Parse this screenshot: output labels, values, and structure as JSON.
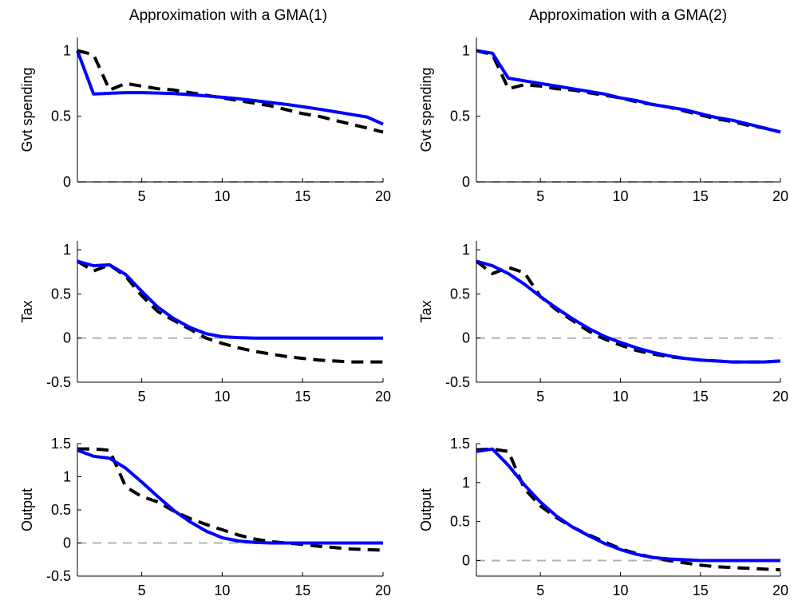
{
  "colors": {
    "model": "#0000ff",
    "target": "#000000",
    "zero_line": "#b3b3b3",
    "axes": "#000000"
  },
  "columns": [
    {
      "title": "Approximation with a GMA(1)"
    },
    {
      "title": "Approximation with a GMA(2)"
    }
  ],
  "chart_data": [
    {
      "type": "line",
      "title": "Approximation with a GMA(1)",
      "xlabel": "",
      "ylabel": "Gvt spending",
      "xlim": [
        1,
        20
      ],
      "ylim": [
        0,
        1.1
      ],
      "xticks": [
        5,
        10,
        15,
        20
      ],
      "xtick_labels": [
        "5",
        "10",
        "15",
        "20"
      ],
      "yticks": [
        0,
        0.5,
        1
      ],
      "ytick_labels": [
        "0",
        "0.5",
        "1"
      ],
      "zero_line": true,
      "x": [
        1,
        2,
        3,
        4,
        5,
        6,
        7,
        8,
        9,
        10,
        11,
        12,
        13,
        14,
        15,
        16,
        17,
        18,
        19,
        20
      ],
      "series": [
        {
          "style": "dashed",
          "color": "#000000",
          "values": [
            1.0,
            0.97,
            0.7,
            0.75,
            0.73,
            0.71,
            0.7,
            0.68,
            0.66,
            0.64,
            0.62,
            0.6,
            0.58,
            0.55,
            0.52,
            0.5,
            0.47,
            0.44,
            0.41,
            0.38
          ]
        },
        {
          "style": "solid",
          "color": "#0000ff",
          "values": [
            1.0,
            0.67,
            0.675,
            0.68,
            0.68,
            0.677,
            0.673,
            0.665,
            0.655,
            0.645,
            0.633,
            0.62,
            0.605,
            0.59,
            0.573,
            0.555,
            0.535,
            0.515,
            0.495,
            0.44
          ]
        }
      ]
    },
    {
      "type": "line",
      "title": "Approximation with a GMA(2)",
      "xlabel": "",
      "ylabel": "Gvt spending",
      "xlim": [
        1,
        20
      ],
      "ylim": [
        0,
        1.1
      ],
      "xticks": [
        5,
        10,
        15,
        20
      ],
      "xtick_labels": [
        "5",
        "10",
        "15",
        "20"
      ],
      "yticks": [
        0,
        0.5,
        1
      ],
      "ytick_labels": [
        "0",
        "0.5",
        "1"
      ],
      "zero_line": true,
      "x": [
        1,
        2,
        3,
        4,
        5,
        6,
        7,
        8,
        9,
        10,
        11,
        12,
        13,
        14,
        15,
        16,
        17,
        18,
        19,
        20
      ],
      "series": [
        {
          "style": "dashed",
          "color": "#000000",
          "values": [
            1.0,
            0.97,
            0.71,
            0.74,
            0.73,
            0.71,
            0.7,
            0.68,
            0.66,
            0.64,
            0.61,
            0.59,
            0.57,
            0.54,
            0.51,
            0.48,
            0.46,
            0.43,
            0.41,
            0.38
          ]
        },
        {
          "style": "solid",
          "color": "#0000ff",
          "values": [
            1.0,
            0.98,
            0.79,
            0.77,
            0.75,
            0.73,
            0.71,
            0.69,
            0.67,
            0.64,
            0.62,
            0.59,
            0.57,
            0.55,
            0.52,
            0.49,
            0.47,
            0.44,
            0.41,
            0.38
          ]
        }
      ]
    },
    {
      "type": "line",
      "title": "",
      "xlabel": "",
      "ylabel": "Tax",
      "xlim": [
        1,
        20
      ],
      "ylim": [
        -0.5,
        1.1
      ],
      "xticks": [
        5,
        10,
        15,
        20
      ],
      "xtick_labels": [
        "5",
        "10",
        "15",
        "20"
      ],
      "yticks": [
        -0.5,
        0,
        0.5,
        1
      ],
      "ytick_labels": [
        "-0.5",
        "0",
        "0.5",
        "1"
      ],
      "zero_line": true,
      "x": [
        1,
        2,
        3,
        4,
        5,
        6,
        7,
        8,
        9,
        10,
        11,
        12,
        13,
        14,
        15,
        16,
        17,
        18,
        19,
        20
      ],
      "series": [
        {
          "style": "dashed",
          "color": "#000000",
          "values": [
            0.87,
            0.76,
            0.83,
            0.7,
            0.48,
            0.3,
            0.2,
            0.1,
            0.0,
            -0.06,
            -0.11,
            -0.15,
            -0.18,
            -0.21,
            -0.23,
            -0.25,
            -0.26,
            -0.27,
            -0.27,
            -0.27
          ]
        },
        {
          "style": "solid",
          "color": "#0000ff",
          "values": [
            0.87,
            0.82,
            0.83,
            0.72,
            0.53,
            0.35,
            0.22,
            0.12,
            0.05,
            0.015,
            0.005,
            0.0,
            0.0,
            0.0,
            0.0,
            0.0,
            0.0,
            0.0,
            0.0,
            0.0
          ]
        }
      ]
    },
    {
      "type": "line",
      "title": "",
      "xlabel": "",
      "ylabel": "Tax",
      "xlim": [
        1,
        20
      ],
      "ylim": [
        -0.5,
        1.1
      ],
      "xticks": [
        5,
        10,
        15,
        20
      ],
      "xtick_labels": [
        "5",
        "10",
        "15",
        "20"
      ],
      "yticks": [
        -0.5,
        0,
        0.5,
        1
      ],
      "ytick_labels": [
        "-0.5",
        "0",
        "0.5",
        "1"
      ],
      "zero_line": true,
      "x": [
        1,
        2,
        3,
        4,
        5,
        6,
        7,
        8,
        9,
        10,
        11,
        12,
        13,
        14,
        15,
        16,
        17,
        18,
        19,
        20
      ],
      "series": [
        {
          "style": "dashed",
          "color": "#000000",
          "values": [
            0.87,
            0.73,
            0.8,
            0.74,
            0.47,
            0.32,
            0.2,
            0.08,
            -0.01,
            -0.08,
            -0.14,
            -0.18,
            -0.21,
            -0.23,
            -0.25,
            -0.26,
            -0.27,
            -0.27,
            -0.27,
            -0.26
          ]
        },
        {
          "style": "solid",
          "color": "#0000ff",
          "values": [
            0.87,
            0.82,
            0.73,
            0.61,
            0.47,
            0.34,
            0.22,
            0.11,
            0.02,
            -0.05,
            -0.11,
            -0.16,
            -0.2,
            -0.23,
            -0.25,
            -0.26,
            -0.27,
            -0.27,
            -0.27,
            -0.26
          ]
        }
      ]
    },
    {
      "type": "line",
      "title": "",
      "xlabel": "",
      "ylabel": "Output",
      "xlim": [
        1,
        20
      ],
      "ylim": [
        -0.5,
        1.5
      ],
      "xticks": [
        5,
        10,
        15,
        20
      ],
      "xtick_labels": [
        "5",
        "10",
        "15",
        "20"
      ],
      "yticks": [
        -0.5,
        0,
        0.5,
        1,
        1.5
      ],
      "ytick_labels": [
        "-0.5",
        "0",
        "0.5",
        "1",
        "1.5"
      ],
      "zero_line": true,
      "x": [
        1,
        2,
        3,
        4,
        5,
        6,
        7,
        8,
        9,
        10,
        11,
        12,
        13,
        14,
        15,
        16,
        17,
        18,
        19,
        20
      ],
      "series": [
        {
          "style": "dashed",
          "color": "#000000",
          "values": [
            1.42,
            1.42,
            1.4,
            0.85,
            0.7,
            0.62,
            0.48,
            0.37,
            0.28,
            0.2,
            0.12,
            0.06,
            0.02,
            0.0,
            -0.02,
            -0.05,
            -0.07,
            -0.09,
            -0.1,
            -0.11
          ]
        },
        {
          "style": "solid",
          "color": "#0000ff",
          "values": [
            1.4,
            1.31,
            1.28,
            1.13,
            0.92,
            0.7,
            0.49,
            0.32,
            0.18,
            0.08,
            0.03,
            0.01,
            0.0,
            0.0,
            0.0,
            0.0,
            0.0,
            0.0,
            0.0,
            0.0
          ]
        }
      ]
    },
    {
      "type": "line",
      "title": "",
      "xlabel": "",
      "ylabel": "Output",
      "xlim": [
        1,
        20
      ],
      "ylim": [
        -0.2,
        1.5
      ],
      "xticks": [
        5,
        10,
        15,
        20
      ],
      "xtick_labels": [
        "5",
        "10",
        "15",
        "20"
      ],
      "yticks": [
        0,
        0.5,
        1,
        1.5
      ],
      "ytick_labels": [
        "0",
        "0.5",
        "1",
        "1.5"
      ],
      "zero_line": true,
      "x": [
        1,
        2,
        3,
        4,
        5,
        6,
        7,
        8,
        9,
        10,
        11,
        12,
        13,
        14,
        15,
        16,
        17,
        18,
        19,
        20
      ],
      "series": [
        {
          "style": "dashed",
          "color": "#000000",
          "values": [
            1.42,
            1.43,
            1.4,
            0.92,
            0.7,
            0.55,
            0.43,
            0.33,
            0.24,
            0.15,
            0.09,
            0.04,
            0.0,
            -0.03,
            -0.06,
            -0.08,
            -0.09,
            -0.1,
            -0.11,
            -0.12
          ]
        },
        {
          "style": "solid",
          "color": "#0000ff",
          "values": [
            1.4,
            1.43,
            1.22,
            0.97,
            0.75,
            0.57,
            0.43,
            0.32,
            0.22,
            0.14,
            0.08,
            0.04,
            0.02,
            0.01,
            0.0,
            0.0,
            0.0,
            0.0,
            0.0,
            0.0
          ]
        }
      ]
    }
  ]
}
